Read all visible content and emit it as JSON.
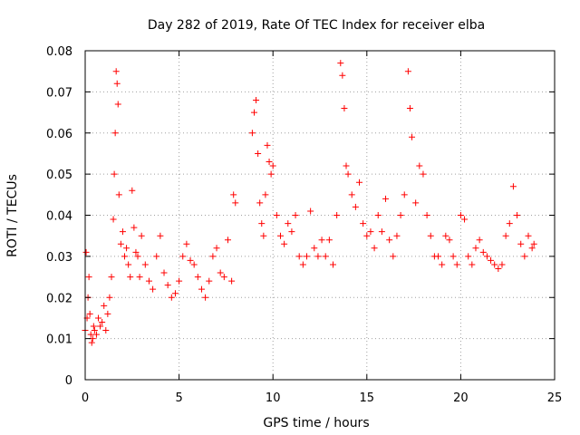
{
  "chart_data": {
    "type": "scatter",
    "title": "Day 282 of 2019, Rate Of TEC Index for receiver elba",
    "xlabel": "GPS time / hours",
    "ylabel": "ROTI / TECUs",
    "xlim": [
      0,
      25
    ],
    "ylim": [
      0,
      0.08
    ],
    "xticks": [
      0,
      5,
      10,
      15,
      20,
      25
    ],
    "xtick_labels": [
      "0",
      "5",
      "10",
      "15",
      "20",
      "25"
    ],
    "yticks": [
      0,
      0.01,
      0.02,
      0.03,
      0.04,
      0.05,
      0.06,
      0.07,
      0.08
    ],
    "ytick_labels": [
      "0",
      "0.01",
      "0.02",
      "0.03",
      "0.04",
      "0.05",
      "0.06",
      "0.07",
      "0.08"
    ],
    "grid": true,
    "marker": "plus",
    "color": "#ff0000",
    "series": [
      {
        "x": [
          0.0,
          0.05,
          0.1,
          0.15,
          0.2,
          0.25,
          0.3,
          0.35,
          0.4,
          0.45,
          0.5,
          0.6,
          0.7,
          0.8,
          0.9,
          1.0,
          1.1,
          1.2,
          1.3,
          1.4,
          1.5,
          1.55,
          1.6,
          1.65,
          1.7,
          1.75,
          1.8,
          1.9,
          2.0,
          2.1,
          2.2,
          2.3,
          2.4,
          2.5,
          2.6,
          2.7,
          2.8,
          2.9,
          3.0,
          3.2,
          3.4,
          3.6,
          3.8,
          4.0,
          4.2,
          4.4,
          4.6,
          4.8,
          5.0,
          5.2,
          5.4,
          5.6,
          5.8,
          6.0,
          6.2,
          6.4,
          6.6,
          6.8,
          7.0,
          7.2,
          7.4,
          7.6,
          7.8,
          7.9,
          8.0,
          8.9,
          9.0,
          9.1,
          9.2,
          9.3,
          9.4,
          9.5,
          9.6,
          9.7,
          9.8,
          9.9,
          10.0,
          10.2,
          10.4,
          10.6,
          10.8,
          11.0,
          11.2,
          11.4,
          11.6,
          11.8,
          12.0,
          12.2,
          12.4,
          12.6,
          12.8,
          13.0,
          13.2,
          13.4,
          13.6,
          13.7,
          13.8,
          13.9,
          14.0,
          14.2,
          14.4,
          14.6,
          14.8,
          15.0,
          15.2,
          15.4,
          15.6,
          15.8,
          16.0,
          16.2,
          16.4,
          16.6,
          16.8,
          17.0,
          17.2,
          17.3,
          17.4,
          17.6,
          17.8,
          18.0,
          18.2,
          18.4,
          18.6,
          18.8,
          19.0,
          19.2,
          19.4,
          19.6,
          19.8,
          20.0,
          20.2,
          20.4,
          20.6,
          20.8,
          21.0,
          21.2,
          21.4,
          21.6,
          21.8,
          22.0,
          22.2,
          22.4,
          22.6,
          22.8,
          23.0,
          23.2,
          23.4,
          23.6,
          23.8,
          23.9
        ],
        "y": [
          0.012,
          0.031,
          0.015,
          0.02,
          0.025,
          0.016,
          0.011,
          0.009,
          0.01,
          0.013,
          0.012,
          0.011,
          0.015,
          0.013,
          0.014,
          0.018,
          0.012,
          0.016,
          0.02,
          0.025,
          0.039,
          0.05,
          0.06,
          0.075,
          0.072,
          0.067,
          0.045,
          0.033,
          0.036,
          0.03,
          0.032,
          0.028,
          0.025,
          0.046,
          0.037,
          0.031,
          0.03,
          0.025,
          0.035,
          0.028,
          0.024,
          0.022,
          0.03,
          0.035,
          0.026,
          0.023,
          0.02,
          0.021,
          0.024,
          0.03,
          0.033,
          0.029,
          0.028,
          0.025,
          0.022,
          0.02,
          0.024,
          0.03,
          0.032,
          0.026,
          0.025,
          0.034,
          0.024,
          0.045,
          0.043,
          0.06,
          0.065,
          0.068,
          0.055,
          0.043,
          0.038,
          0.035,
          0.045,
          0.057,
          0.053,
          0.05,
          0.052,
          0.04,
          0.035,
          0.033,
          0.038,
          0.036,
          0.04,
          0.03,
          0.028,
          0.03,
          0.041,
          0.032,
          0.03,
          0.034,
          0.03,
          0.034,
          0.028,
          0.04,
          0.077,
          0.074,
          0.066,
          0.052,
          0.05,
          0.045,
          0.042,
          0.048,
          0.038,
          0.035,
          0.036,
          0.032,
          0.04,
          0.036,
          0.044,
          0.034,
          0.03,
          0.035,
          0.04,
          0.045,
          0.075,
          0.066,
          0.059,
          0.043,
          0.052,
          0.05,
          0.04,
          0.035,
          0.03,
          0.03,
          0.028,
          0.035,
          0.034,
          0.03,
          0.028,
          0.04,
          0.039,
          0.03,
          0.028,
          0.032,
          0.034,
          0.031,
          0.03,
          0.029,
          0.028,
          0.027,
          0.028,
          0.035,
          0.038,
          0.047,
          0.04,
          0.033,
          0.03,
          0.035,
          0.032,
          0.033
        ]
      }
    ]
  }
}
